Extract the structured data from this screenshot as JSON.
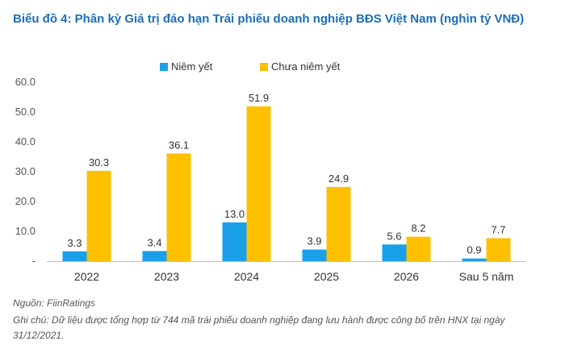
{
  "title": "Biểu đồ 4: Phân kỳ Giá trị đáo hạn Trái phiếu doanh nghiệp BĐS Việt Nam (nghìn tỷ VNĐ)",
  "source": "Nguồn: FiinRatings",
  "note": "Ghi chú: Dữ liệu được tổng hợp từ 744 mã trái phiếu doanh nghiệp đang lưu hành được công bố trên HNX tại ngày 31/12/2021.",
  "colors": {
    "listed": "#1aa0e8",
    "unlisted": "#ffc000"
  },
  "chart_data": {
    "type": "bar",
    "title": "Biểu đồ 4: Phân kỳ Giá trị đáo hạn Trái phiếu doanh nghiệp BĐS Việt Nam (nghìn tỷ VNĐ)",
    "categories": [
      "2022",
      "2023",
      "2024",
      "2025",
      "2026",
      "Sau 5 năm"
    ],
    "series": [
      {
        "name": "Niêm yết",
        "values": [
          3.3,
          3.4,
          13.0,
          3.9,
          5.6,
          0.9
        ]
      },
      {
        "name": "Chưa niêm yết",
        "values": [
          30.3,
          36.1,
          51.9,
          24.9,
          8.2,
          7.7
        ]
      }
    ],
    "value_labels": [
      [
        "3.3",
        "3.4",
        "13.0",
        "3.9",
        "5.6",
        "0.9"
      ],
      [
        "30.3",
        "36.1",
        "51.9",
        "24.9",
        "8.2",
        "7.7"
      ]
    ],
    "yticks": [
      "-",
      "10.0",
      "20.0",
      "30.0",
      "40.0",
      "50.0",
      "60.0"
    ],
    "ylim": [
      0,
      60
    ],
    "legend_position": "top-center",
    "grid": false
  }
}
